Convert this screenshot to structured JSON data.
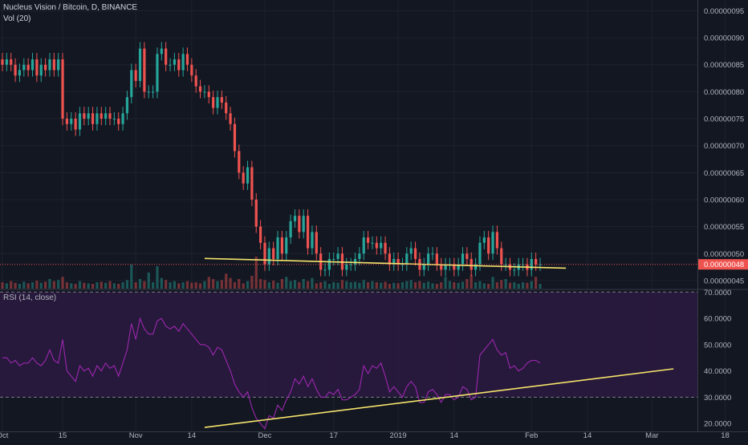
{
  "chart_data": [
    {
      "type": "candlestick",
      "title": "Nucleus Vision / Bitcoin, D, BINANCE",
      "subtitle": "Vol (20)",
      "price_label": "0.00000048",
      "ylim": [
        4.35e-07,
        9.7e-07
      ],
      "y_ticks": [
        "0.00000095",
        "0.00000090",
        "0.00000085",
        "0.00000080",
        "0.00000075",
        "0.00000070",
        "0.00000065",
        "0.00000060",
        "0.00000055",
        "0.00000050",
        "0.00000045"
      ],
      "x_ticks": [
        {
          "day": 0,
          "label": "Oct"
        },
        {
          "day": 14,
          "label": "15"
        },
        {
          "day": 31,
          "label": "Nov"
        },
        {
          "day": 44,
          "label": "14"
        },
        {
          "day": 61,
          "label": "Dec"
        },
        {
          "day": 77,
          "label": "17"
        },
        {
          "day": 92,
          "label": "2019"
        },
        {
          "day": 105,
          "label": "14"
        },
        {
          "day": 123,
          "label": "Feb"
        },
        {
          "day": 136,
          "label": "14"
        },
        {
          "day": 151,
          "label": "Mar"
        },
        {
          "day": 168,
          "label": "18"
        }
      ],
      "close": [
        85,
        86,
        85,
        83,
        84,
        85,
        84,
        86,
        83,
        85,
        84,
        86,
        84,
        86,
        75,
        74,
        75,
        73,
        76,
        75,
        76,
        74,
        76,
        75,
        76,
        75,
        75,
        74,
        76,
        79,
        84,
        82,
        88,
        80,
        80,
        80,
        87,
        88,
        85,
        85,
        86,
        84,
        87,
        85,
        83,
        81,
        80,
        80,
        79,
        77,
        79,
        78,
        76,
        74,
        69,
        65,
        63,
        66,
        60,
        55,
        52,
        48,
        51,
        49,
        53,
        50,
        53,
        56,
        57,
        54,
        57,
        51,
        54,
        50,
        47,
        47,
        49,
        49,
        50,
        47,
        48,
        48,
        49,
        50,
        53,
        52,
        52,
        51,
        52,
        50,
        48,
        49,
        48,
        48,
        50,
        51,
        49,
        47,
        48,
        50,
        50,
        48,
        47,
        48,
        48,
        47,
        48,
        50,
        49,
        47,
        48,
        52,
        53,
        50,
        54,
        51,
        48,
        48,
        47,
        47,
        48,
        48,
        47,
        49,
        48,
        48
      ],
      "volume": [
        12,
        10,
        14,
        11,
        9,
        13,
        10,
        12,
        15,
        11,
        13,
        18,
        14,
        16,
        22,
        12,
        10,
        9,
        14,
        11,
        10,
        9,
        12,
        13,
        11,
        14,
        10,
        9,
        12,
        16,
        45,
        12,
        18,
        14,
        30,
        12,
        42,
        20,
        16,
        12,
        14,
        10,
        12,
        14,
        11,
        12,
        10,
        14,
        22,
        18,
        14,
        16,
        28,
        20,
        12,
        18,
        10,
        14,
        24,
        60,
        18,
        16,
        12,
        15,
        11,
        18,
        22,
        14,
        16,
        12,
        18,
        14,
        20,
        10,
        12,
        14,
        9,
        12,
        11,
        16,
        14,
        12,
        13,
        11,
        16,
        12,
        14,
        12,
        11,
        13,
        9,
        11,
        10,
        12,
        14,
        16,
        12,
        14,
        11,
        13,
        10,
        9,
        12,
        22,
        14,
        12,
        11,
        13,
        18,
        26,
        12,
        14,
        10,
        9,
        22,
        12,
        16,
        18,
        11,
        12,
        9,
        12,
        11,
        14,
        22,
        9
      ],
      "support_line": {
        "start_day": 47,
        "start": 4.91e-07,
        "end_day": 131,
        "end": 4.73e-07,
        "color": "#f5e36c"
      },
      "colors": {
        "up": "#26a69a",
        "down": "#ef5350",
        "background": "#131722",
        "price_label": "#ef5350"
      }
    },
    {
      "type": "line",
      "title": "RSI (14, close)",
      "ylim": [
        17,
        71
      ],
      "levels": [
        70,
        30
      ],
      "y_ticks": [
        "70.0000",
        "60.0000",
        "50.0000",
        "40.0000",
        "30.0000",
        "20.0000"
      ],
      "values": [
        45,
        45,
        43,
        44,
        42,
        43,
        43,
        45,
        43,
        42,
        44,
        48,
        44,
        43,
        52,
        40,
        38,
        36,
        42,
        40,
        41,
        38,
        42,
        40,
        43,
        41,
        42,
        38,
        43,
        48,
        58,
        52,
        60,
        56,
        54,
        54,
        59,
        60,
        57,
        56,
        57,
        55,
        58,
        56,
        54,
        52,
        50,
        50,
        49,
        46,
        49,
        48,
        44,
        40,
        35,
        32,
        30,
        32,
        26,
        22,
        20,
        18,
        23,
        22,
        27,
        25,
        29,
        32,
        37,
        35,
        38,
        34,
        37,
        33,
        30,
        30,
        32,
        31,
        33,
        29,
        29,
        30,
        31,
        33,
        42,
        39,
        42,
        41,
        43,
        38,
        32,
        34,
        32,
        30,
        34,
        36,
        34,
        28,
        28,
        32,
        33,
        31,
        28,
        31,
        31,
        29,
        30,
        34,
        33,
        29,
        30,
        46,
        48,
        50,
        52,
        48,
        46,
        47,
        41,
        42,
        40,
        41,
        43,
        44,
        44,
        43
      ],
      "trend_line": {
        "start_day": 47,
        "start": 18.5,
        "end_day": 156,
        "end": 40.8,
        "color": "#f5e36c"
      },
      "colors": {
        "line": "#9c27b0",
        "band": "#2a1a3e"
      }
    }
  ]
}
